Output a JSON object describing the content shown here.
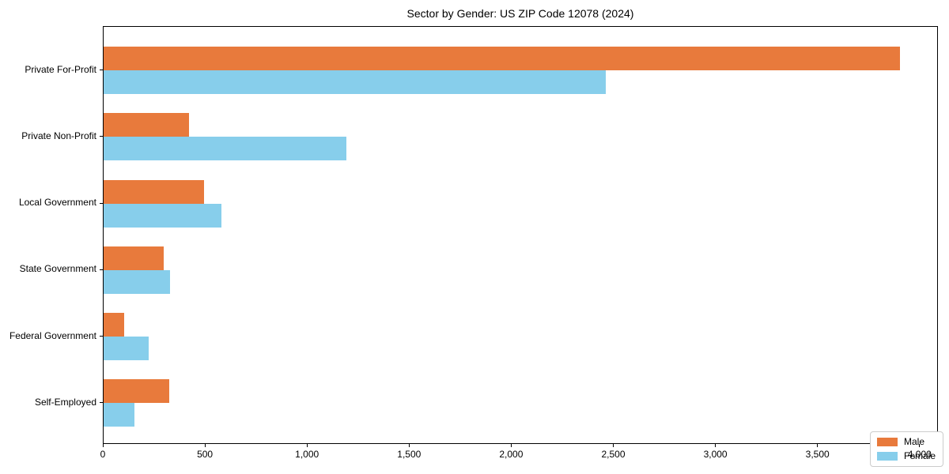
{
  "chart_data": {
    "type": "bar",
    "orientation": "horizontal",
    "title": "Sector by Gender: US ZIP Code 12078 (2024)",
    "categories": [
      "Private For-Profit",
      "Private Non-Profit",
      "Local Government",
      "State Government",
      "Federal Government",
      "Self-Employed"
    ],
    "series": [
      {
        "name": "Male",
        "color": "#e87a3c",
        "values": [
          3900,
          420,
          490,
          295,
          100,
          320
        ]
      },
      {
        "name": "Female",
        "color": "#87ceeb",
        "values": [
          2460,
          1190,
          575,
          325,
          220,
          150
        ]
      }
    ],
    "xlabel": "",
    "ylabel": "",
    "xlim": [
      0,
      4090
    ],
    "xticks": [
      0,
      500,
      1000,
      1500,
      2000,
      2500,
      3000,
      3500,
      4000
    ],
    "xtick_labels": [
      "0",
      "500",
      "1,000",
      "1,500",
      "2,000",
      "2,500",
      "3,000",
      "3,500",
      "4,000"
    ],
    "grid": false,
    "legend": {
      "position": "lower right"
    },
    "colors": {
      "axis": "#000000",
      "legend_border": "#cccccc",
      "background": "#ffffff"
    }
  }
}
